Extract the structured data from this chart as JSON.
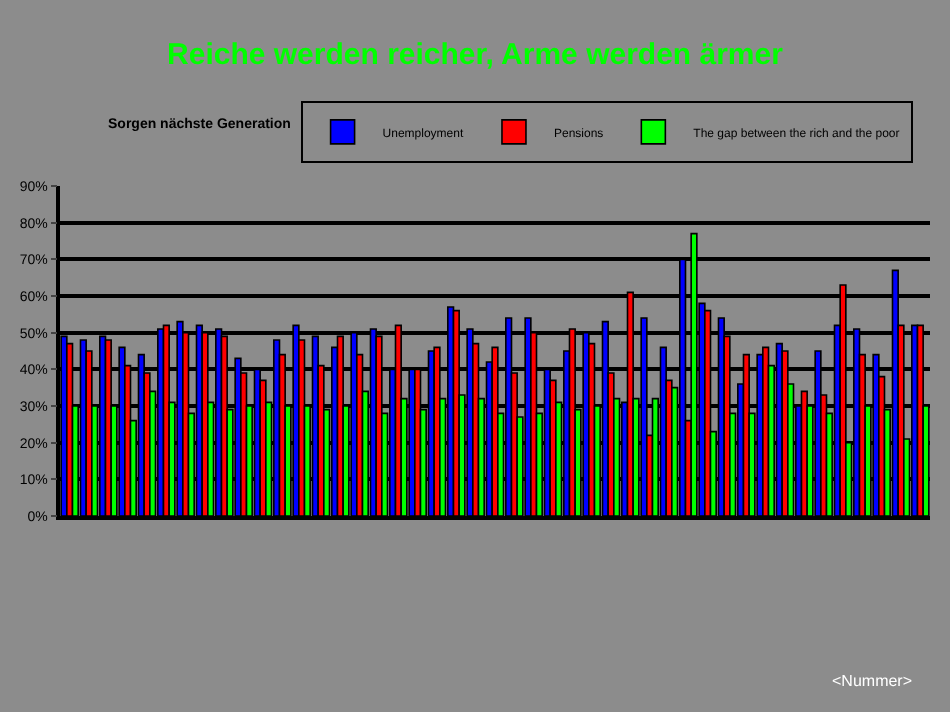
{
  "chart_data": {
    "type": "bar",
    "title": "Reiche werden reicher, Arme werden ärmer",
    "subtitle": "Sorgen nächste Generation",
    "categories": [
      null,
      null,
      null,
      null,
      null,
      null,
      null,
      null,
      null,
      null,
      null,
      null,
      null,
      null,
      null,
      null,
      null,
      null,
      null,
      null,
      null,
      null,
      null,
      null,
      null,
      null,
      null,
      null,
      null,
      null,
      null,
      null,
      null,
      null,
      null,
      null,
      null,
      null,
      null,
      null,
      null,
      null,
      null,
      null,
      null
    ],
    "series": [
      {
        "name": "Unemployment",
        "color": "#0000ff",
        "values": [
          49,
          48,
          49,
          46,
          44,
          51,
          53,
          52,
          51,
          43,
          40,
          48,
          52,
          49,
          46,
          50,
          51,
          40,
          40,
          45,
          57,
          51,
          42,
          54,
          54,
          40,
          45,
          50,
          53,
          31,
          54,
          46,
          70,
          58,
          54,
          36,
          44,
          47,
          30,
          45,
          52,
          51,
          44,
          67,
          52
        ]
      },
      {
        "name": "Pensions",
        "color": "#ff0000",
        "values": [
          47,
          45,
          48,
          41,
          39,
          52,
          50,
          50,
          49,
          39,
          37,
          44,
          48,
          41,
          49,
          44,
          49,
          52,
          40,
          46,
          56,
          47,
          46,
          39,
          50,
          37,
          51,
          47,
          39,
          61,
          22,
          37,
          26,
          56,
          49,
          44,
          46,
          45,
          34,
          33,
          63,
          44,
          38,
          52,
          52
        ]
      },
      {
        "name": "The gap between the rich and the poor",
        "color": "#00ff00",
        "values": [
          30,
          30,
          30,
          26,
          34,
          31,
          28,
          31,
          29,
          30,
          31,
          30,
          30,
          29,
          30,
          34,
          28,
          32,
          29,
          32,
          33,
          32,
          28,
          27,
          28,
          31,
          29,
          30,
          32,
          32,
          32,
          35,
          77,
          23,
          28,
          28,
          41,
          36,
          30,
          28,
          20,
          30,
          29,
          21,
          30
        ]
      }
    ],
    "ylim": [
      0,
      90
    ],
    "yticks": [
      {
        "value": 0,
        "label": "0%"
      },
      {
        "value": 10,
        "label": "10%"
      },
      {
        "value": 20,
        "label": "20%"
      },
      {
        "value": 30,
        "label": "30%"
      },
      {
        "value": 40,
        "label": "40%"
      },
      {
        "value": 50,
        "label": "50%"
      },
      {
        "value": 60,
        "label": "60%"
      },
      {
        "value": 70,
        "label": "70%"
      },
      {
        "value": 80,
        "label": "80%"
      },
      {
        "value": 90,
        "label": "90%"
      }
    ],
    "grid": "y",
    "legend": "top right",
    "annotations": [
      "<Nummer>"
    ]
  }
}
